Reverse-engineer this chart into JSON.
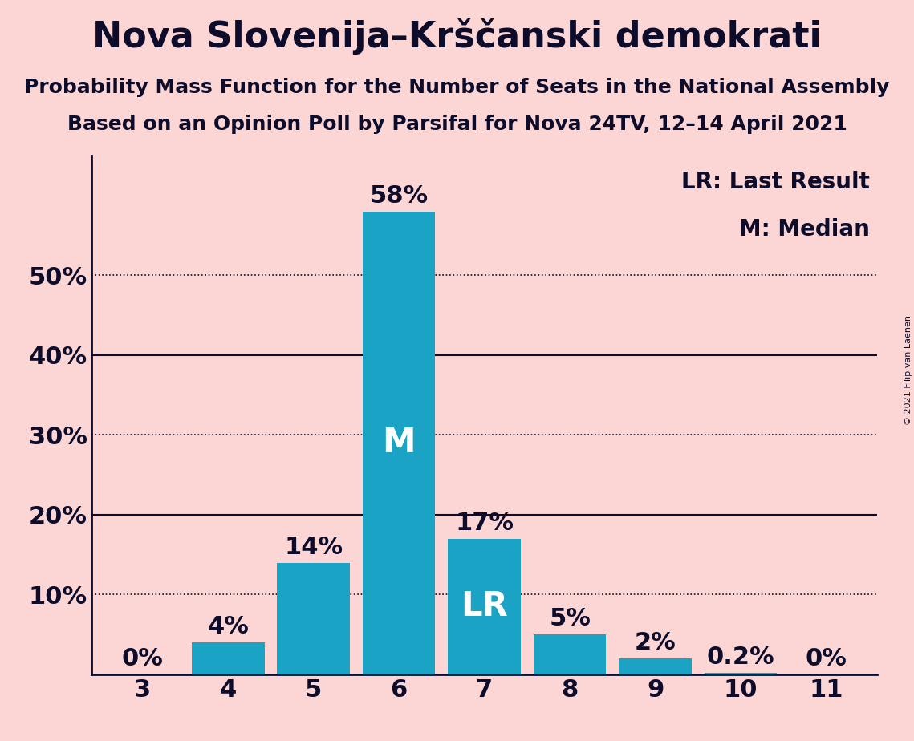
{
  "title": "Nova Slovenija–Krščanski demokrati",
  "subtitle1": "Probability Mass Function for the Number of Seats in the National Assembly",
  "subtitle2": "Based on an Opinion Poll by Parsifal for Nova 24TV, 12–14 April 2021",
  "copyright_text": "© 2021 Filip van Laenen",
  "categories": [
    3,
    4,
    5,
    6,
    7,
    8,
    9,
    10,
    11
  ],
  "values": [
    0.0,
    4.0,
    14.0,
    58.0,
    17.0,
    5.0,
    2.0,
    0.2,
    0.0
  ],
  "bar_color": "#1ba3c6",
  "bar_labels": [
    "0%",
    "4%",
    "14%",
    "58%",
    "17%",
    "5%",
    "2%",
    "0.2%",
    "0%"
  ],
  "median_bar_idx": 3,
  "lr_bar_idx": 4,
  "median_label": "M",
  "lr_label": "LR",
  "background_color": "#fcd5d5",
  "text_color": "#0d0d2b",
  "bar_text_color_inside": "#ffffff",
  "bar_text_color_outside": "#0d0d2b",
  "ylim": [
    0,
    65
  ],
  "yticks": [
    0,
    10,
    20,
    30,
    40,
    50
  ],
  "ytick_labels": [
    "",
    "10%",
    "20%",
    "30%",
    "40%",
    "50%"
  ],
  "solid_yticks": [
    20,
    40
  ],
  "dotted_yticks": [
    10,
    30,
    50
  ],
  "legend_text1": "LR: Last Result",
  "legend_text2": "M: Median",
  "title_fontsize": 32,
  "subtitle_fontsize": 18,
  "tick_fontsize": 22,
  "legend_fontsize": 20,
  "bar_label_fontsize": 22,
  "inside_label_fontsize": 30
}
